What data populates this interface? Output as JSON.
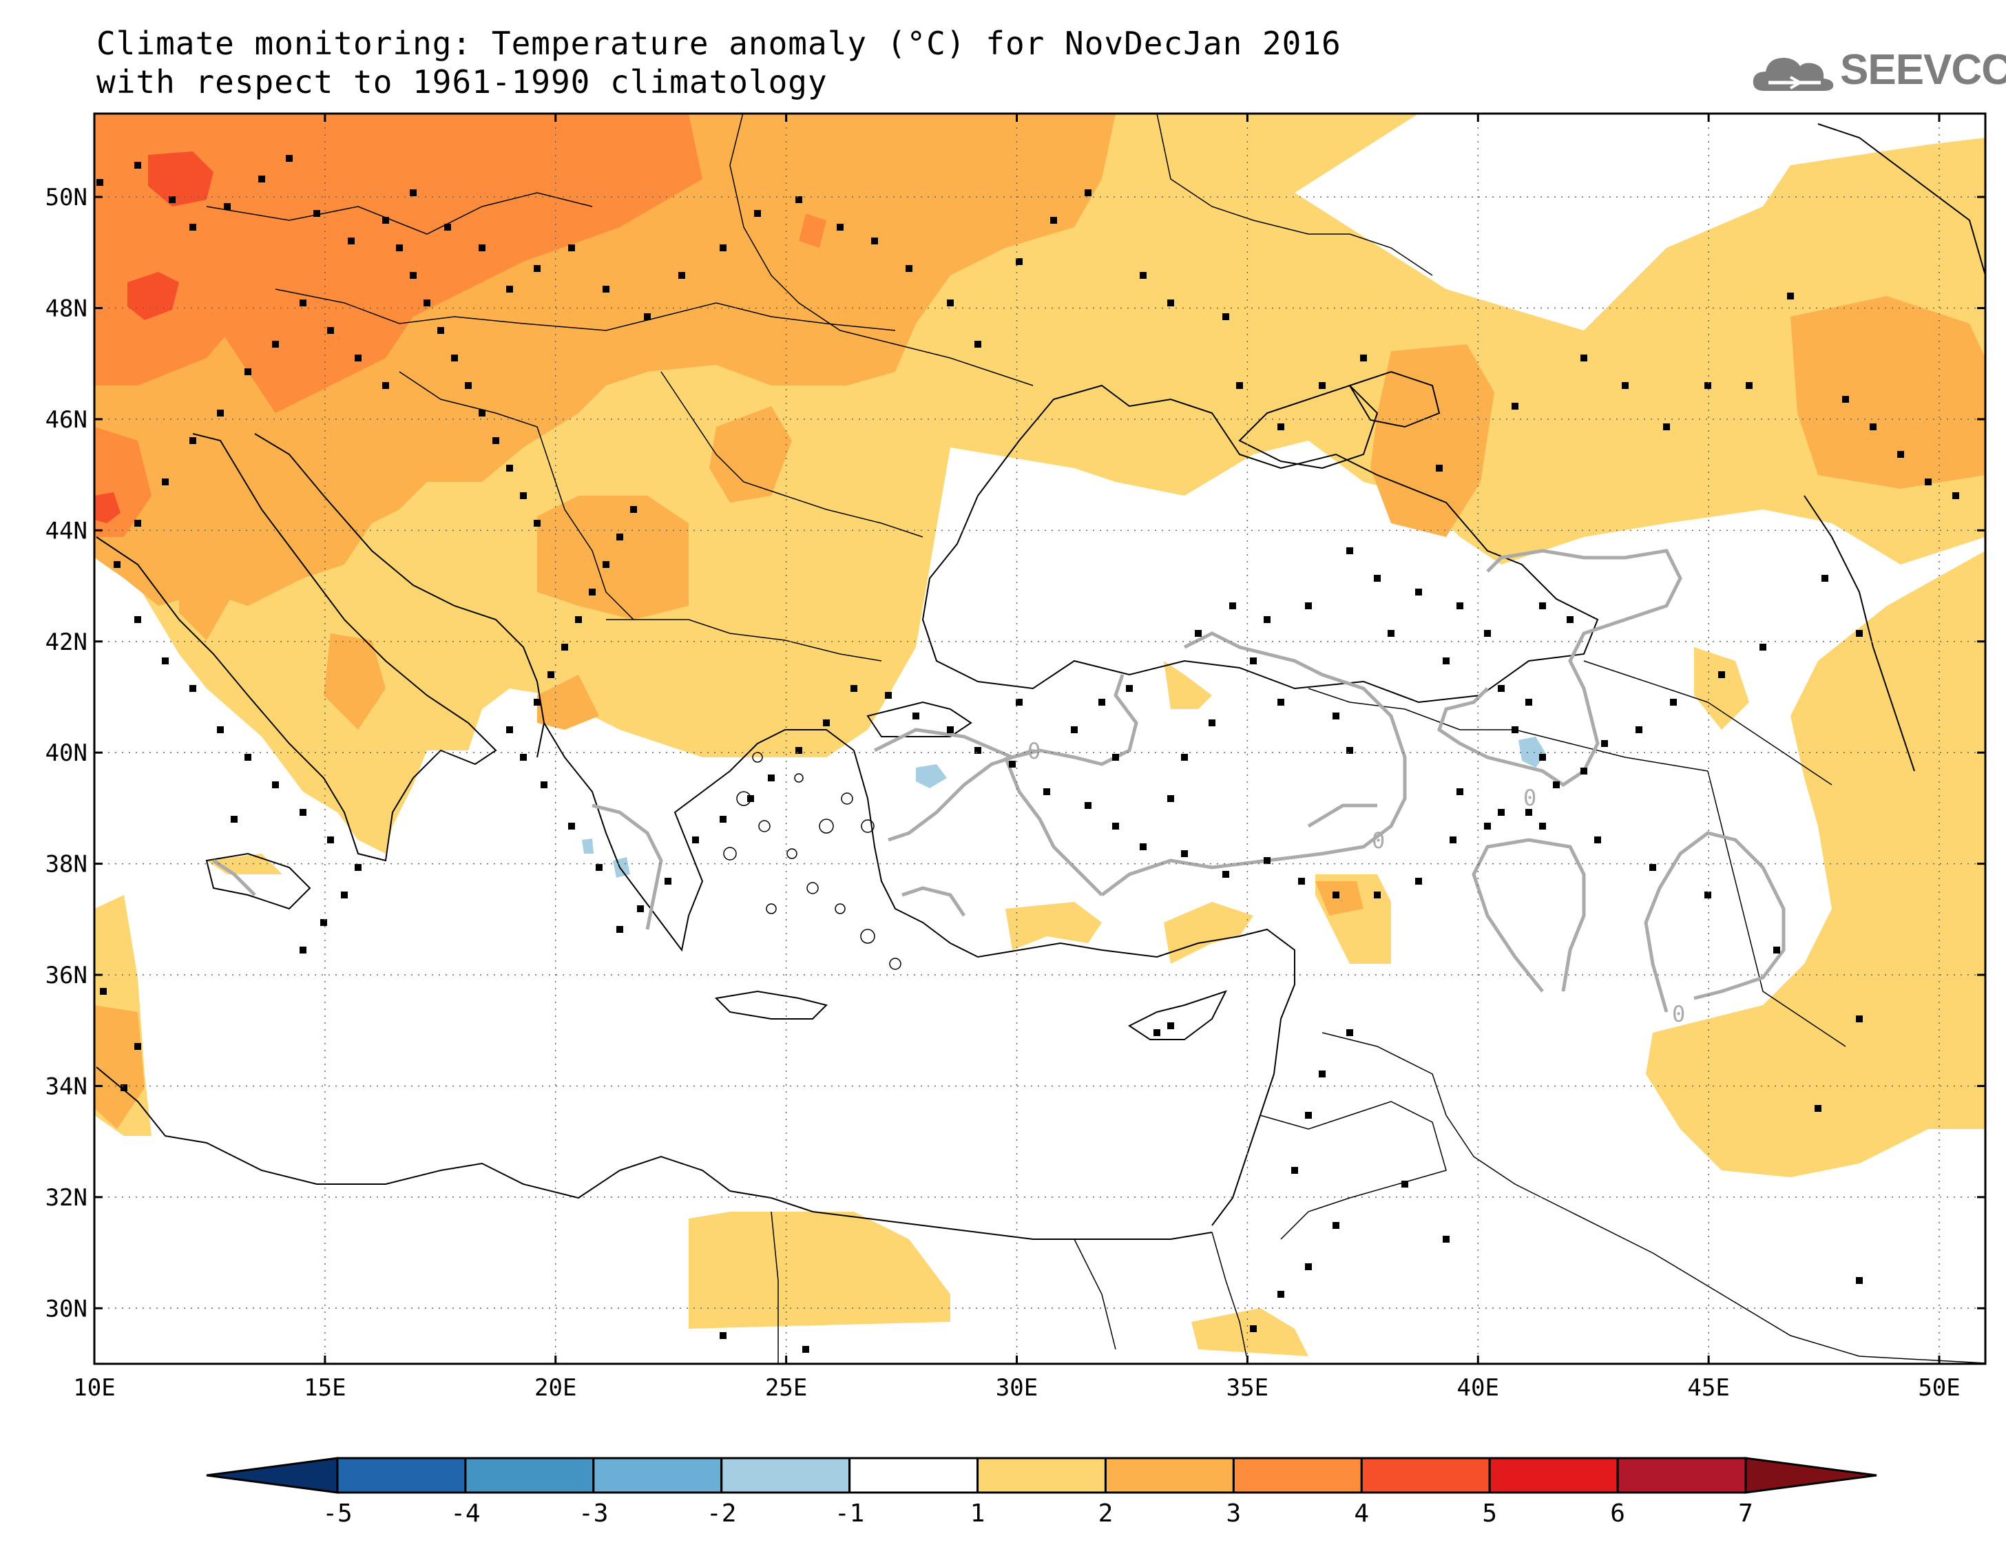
{
  "title": {
    "line1": "Climate monitoring: Temperature anomaly (°C) for NovDecJan 2016",
    "line2": "with respect to 1961-1990 climatology"
  },
  "logo": {
    "text": "SEEVCCC",
    "icon": "cloud-icon"
  },
  "map": {
    "lon_range": [
      10,
      51
    ],
    "lat_range": [
      29,
      51.5
    ],
    "lat_ticks": [
      "50N",
      "48N",
      "46N",
      "44N",
      "42N",
      "40N",
      "38N",
      "36N",
      "34N",
      "32N",
      "30N"
    ],
    "lon_ticks": [
      "10E",
      "15E",
      "20E",
      "25E",
      "30E",
      "35E",
      "40E",
      "45E",
      "50E"
    ],
    "contour_label": "0",
    "grid": "dotted"
  },
  "colorbar": {
    "ticks": [
      "-5",
      "-4",
      "-3",
      "-2",
      "-1",
      "1",
      "2",
      "3",
      "4",
      "5",
      "6",
      "7"
    ],
    "colors": [
      "#08306b",
      "#2166ac",
      "#4393c3",
      "#6baed6",
      "#a6cee3",
      "#ffffff",
      "#fdd672",
      "#fdb14d",
      "#fd8d3c",
      "#f6502a",
      "#e31a1c",
      "#b2182b",
      "#7f0f16"
    ]
  },
  "colors": {
    "anom_1_2": "#fdd672",
    "anom_2_3": "#fdb14d",
    "anom_3_4": "#fd8d3c",
    "anom_4_5": "#f6502a",
    "anom_neg": "#a6cee3",
    "contour": "#aaaaaa"
  }
}
